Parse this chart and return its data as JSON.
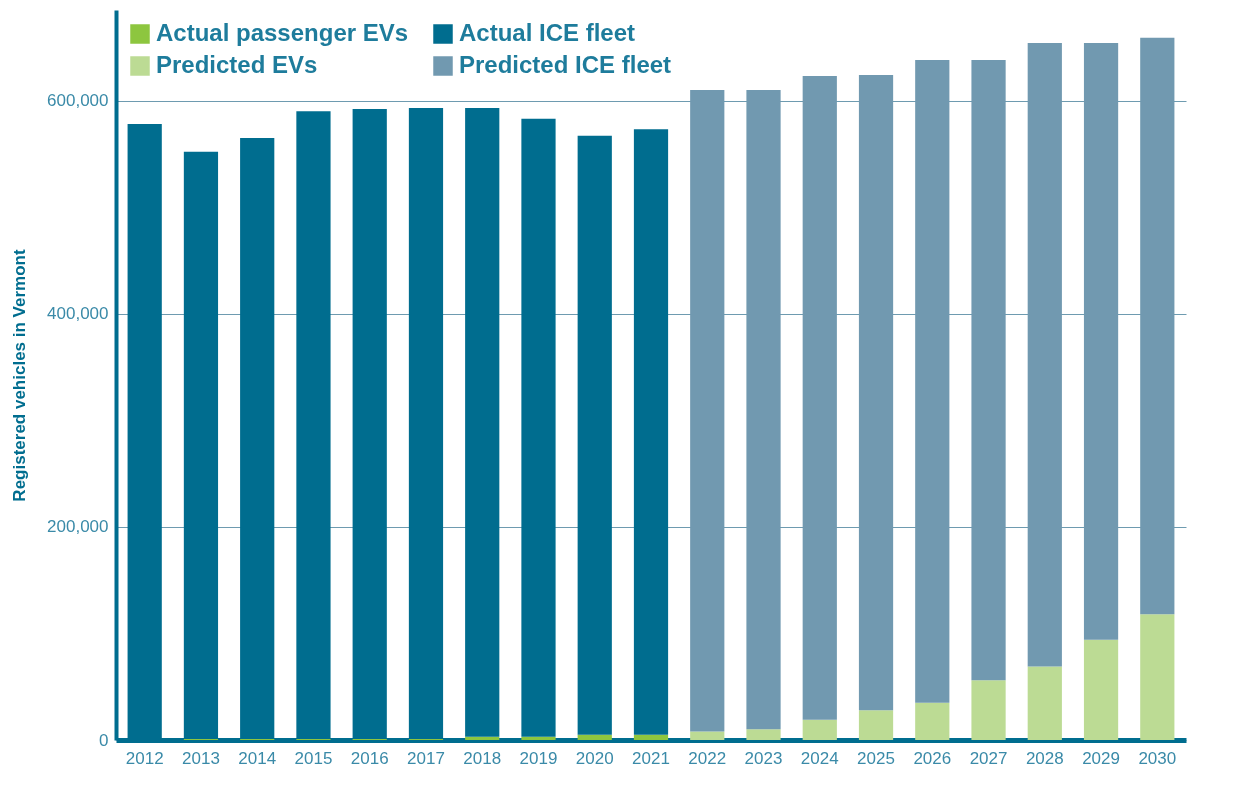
{
  "chart_data": {
    "type": "bar",
    "stacked": true,
    "ylabel": "Registered vehicles in Vermont",
    "categories": [
      "2012",
      "2013",
      "2014",
      "2015",
      "2016",
      "2017",
      "2018",
      "2019",
      "2020",
      "2021",
      "2022",
      "2023",
      "2024",
      "2025",
      "2026",
      "2027",
      "2028",
      "2029",
      "2030"
    ],
    "series": [
      {
        "name": "Actual passenger EVs",
        "color": "#8dc63f",
        "values": [
          0,
          1000,
          1000,
          1000,
          1000,
          1000,
          3000,
          3000,
          5000,
          5000,
          null,
          null,
          null,
          null,
          null,
          null,
          null,
          null,
          null
        ]
      },
      {
        "name": "Actual ICE fleet",
        "color": "#006d8f",
        "values": [
          578000,
          551000,
          564000,
          589000,
          591000,
          592000,
          590000,
          580000,
          562000,
          568000,
          null,
          null,
          null,
          null,
          null,
          null,
          null,
          null,
          null
        ]
      },
      {
        "name": "Predicted EVs",
        "color": "#bcdb94",
        "values": [
          null,
          null,
          null,
          null,
          null,
          null,
          null,
          null,
          null,
          null,
          8000,
          10000,
          19000,
          28000,
          35000,
          56000,
          69000,
          94000,
          118000
        ]
      },
      {
        "name": "Predicted ICE fleet",
        "color": "#7199b0",
        "values": [
          null,
          null,
          null,
          null,
          null,
          null,
          null,
          null,
          null,
          null,
          602000,
          600000,
          604000,
          596000,
          603000,
          582000,
          585000,
          560000,
          541000
        ]
      }
    ],
    "ylim": [
      0,
      685000
    ],
    "yticks": [
      0,
      {
        "value": 200000,
        "label": "200,000"
      },
      {
        "value": 400000,
        "label": "400,000"
      },
      {
        "value": 600000,
        "label": "600,000"
      }
    ],
    "grid": "y",
    "legend": "top left"
  }
}
